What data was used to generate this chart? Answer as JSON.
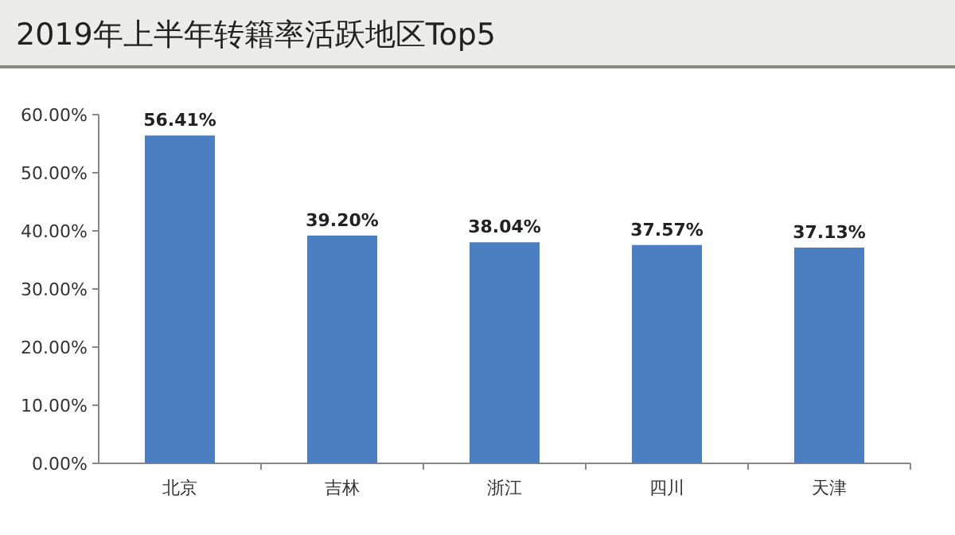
{
  "chart_data": {
    "type": "bar",
    "title": "2019年上半年转籍率活跃地区Top5",
    "categories": [
      "北京",
      "吉林",
      "浙江",
      "四川",
      "天津"
    ],
    "values": [
      56.41,
      39.2,
      38.04,
      37.57,
      37.13
    ],
    "value_labels": [
      "56.41%",
      "39.20%",
      "38.04%",
      "37.57%",
      "37.13%"
    ],
    "color": "#4a7fc1",
    "ylim": [
      0,
      60
    ],
    "yticks": [
      {
        "value": 0,
        "label": "0.00%"
      },
      {
        "value": 10,
        "label": "10.00%"
      },
      {
        "value": 20,
        "label": "20.00%"
      },
      {
        "value": 30,
        "label": "30.00%"
      },
      {
        "value": 40,
        "label": "40.00%"
      },
      {
        "value": 50,
        "label": "50.00%"
      },
      {
        "value": 60,
        "label": "60.00%"
      }
    ],
    "grid": false
  }
}
